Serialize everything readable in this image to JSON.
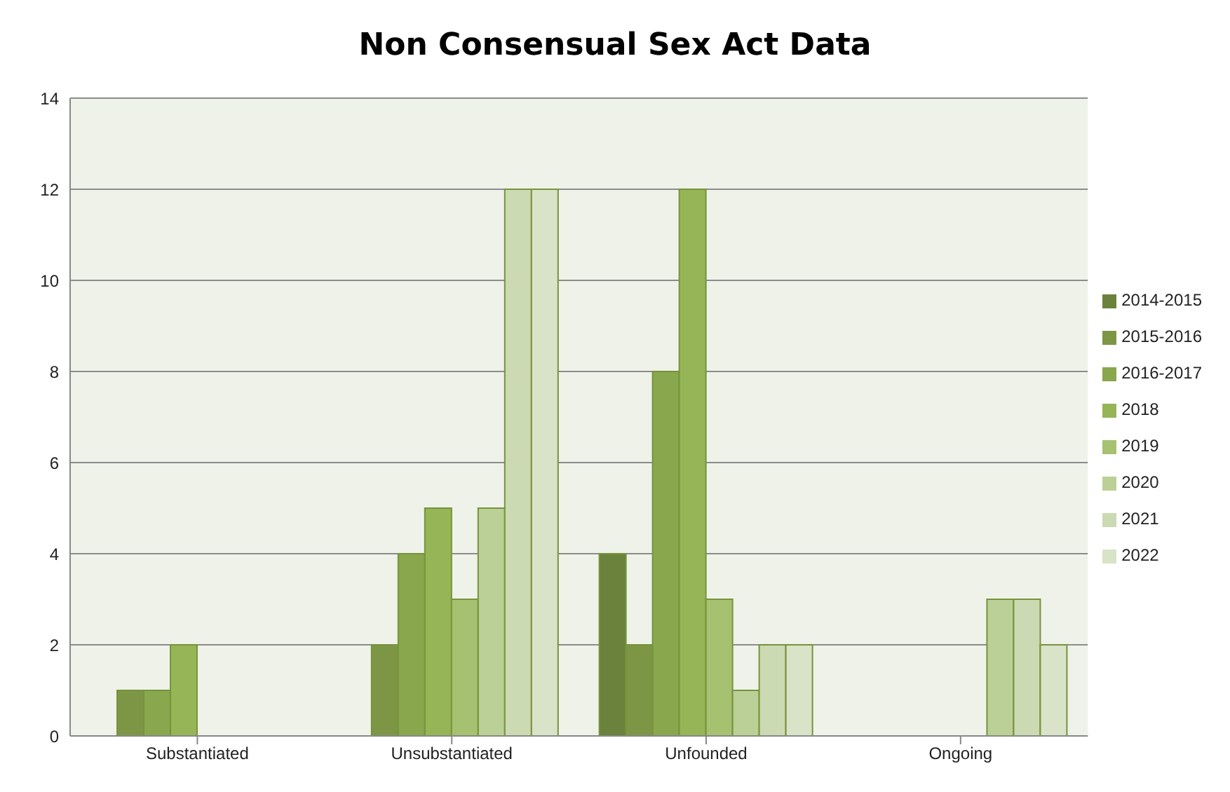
{
  "chart_data": {
    "type": "bar",
    "title": "Non Consensual Sex Act Data",
    "categories": [
      "Substantiated",
      "Unsubstantiated",
      "Unfounded",
      "Ongoing"
    ],
    "series": [
      {
        "name": "2014-2015",
        "color": "#6b823c",
        "values": [
          0,
          0,
          4,
          0
        ]
      },
      {
        "name": "2015-2016",
        "color": "#7d9645",
        "values": [
          1,
          2,
          2,
          0
        ]
      },
      {
        "name": "2016-2017",
        "color": "#89a74d",
        "values": [
          1,
          4,
          8,
          0
        ]
      },
      {
        "name": "2018",
        "color": "#96b556",
        "values": [
          2,
          5,
          12,
          0
        ]
      },
      {
        "name": "2019",
        "color": "#a6c16f",
        "values": [
          0,
          3,
          3,
          0
        ]
      },
      {
        "name": "2020",
        "color": "#bbd096",
        "values": [
          0,
          5,
          1,
          3
        ]
      },
      {
        "name": "2021",
        "color": "#cbdab2",
        "values": [
          0,
          12,
          2,
          3
        ]
      },
      {
        "name": "2022",
        "color": "#d9e3c7",
        "values": [
          0,
          12,
          2,
          2
        ]
      }
    ],
    "ylim": [
      0,
      14
    ],
    "yticks": [
      0,
      2,
      4,
      6,
      8,
      10,
      12,
      14
    ],
    "grid": "y",
    "legend": "right"
  }
}
